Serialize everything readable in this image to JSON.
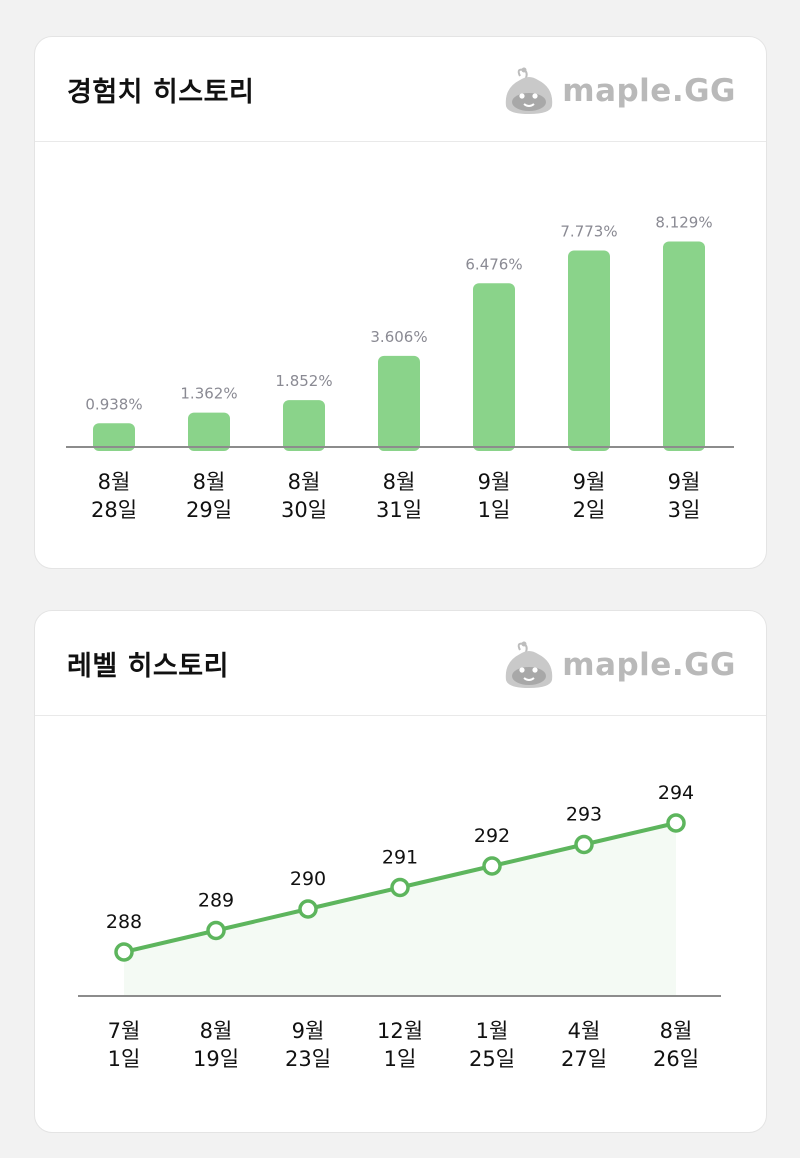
{
  "exp_card": {
    "title": "경험치 히스토리",
    "brand": "maple.GG"
  },
  "level_card": {
    "title": "레벨 히스토리",
    "brand": "maple.GG"
  },
  "colors": {
    "bar": "#8ad38a",
    "line": "#5db55d",
    "area": "#f4faf4",
    "axis": "#8c8c8c"
  },
  "chart_data": [
    {
      "type": "bar",
      "categories": [
        "8월\n28일",
        "8월\n29일",
        "8월\n30일",
        "8월\n31일",
        "9월\n1일",
        "9월\n2일",
        "9월\n3일"
      ],
      "values": [
        0.938,
        1.362,
        1.852,
        3.606,
        6.476,
        7.773,
        8.129
      ],
      "value_labels": [
        "0.938%",
        "1.362%",
        "1.852%",
        "3.606%",
        "6.476%",
        "7.773%",
        "8.129%"
      ],
      "title": "경험치 히스토리",
      "xlabel": "",
      "ylabel": "",
      "ylim": [
        0,
        8.9
      ],
      "grid": false
    },
    {
      "type": "line",
      "categories": [
        "7월\n1일",
        "8월\n19일",
        "9월\n23일",
        "12월\n1일",
        "1월\n25일",
        "4월\n27일",
        "8월\n26일"
      ],
      "values": [
        288,
        289,
        290,
        291,
        292,
        293,
        294
      ],
      "value_labels": [
        "288",
        "289",
        "290",
        "291",
        "292",
        "293",
        "294"
      ],
      "title": "레벨 히스토리",
      "xlabel": "",
      "ylabel": "",
      "grid": false
    }
  ]
}
